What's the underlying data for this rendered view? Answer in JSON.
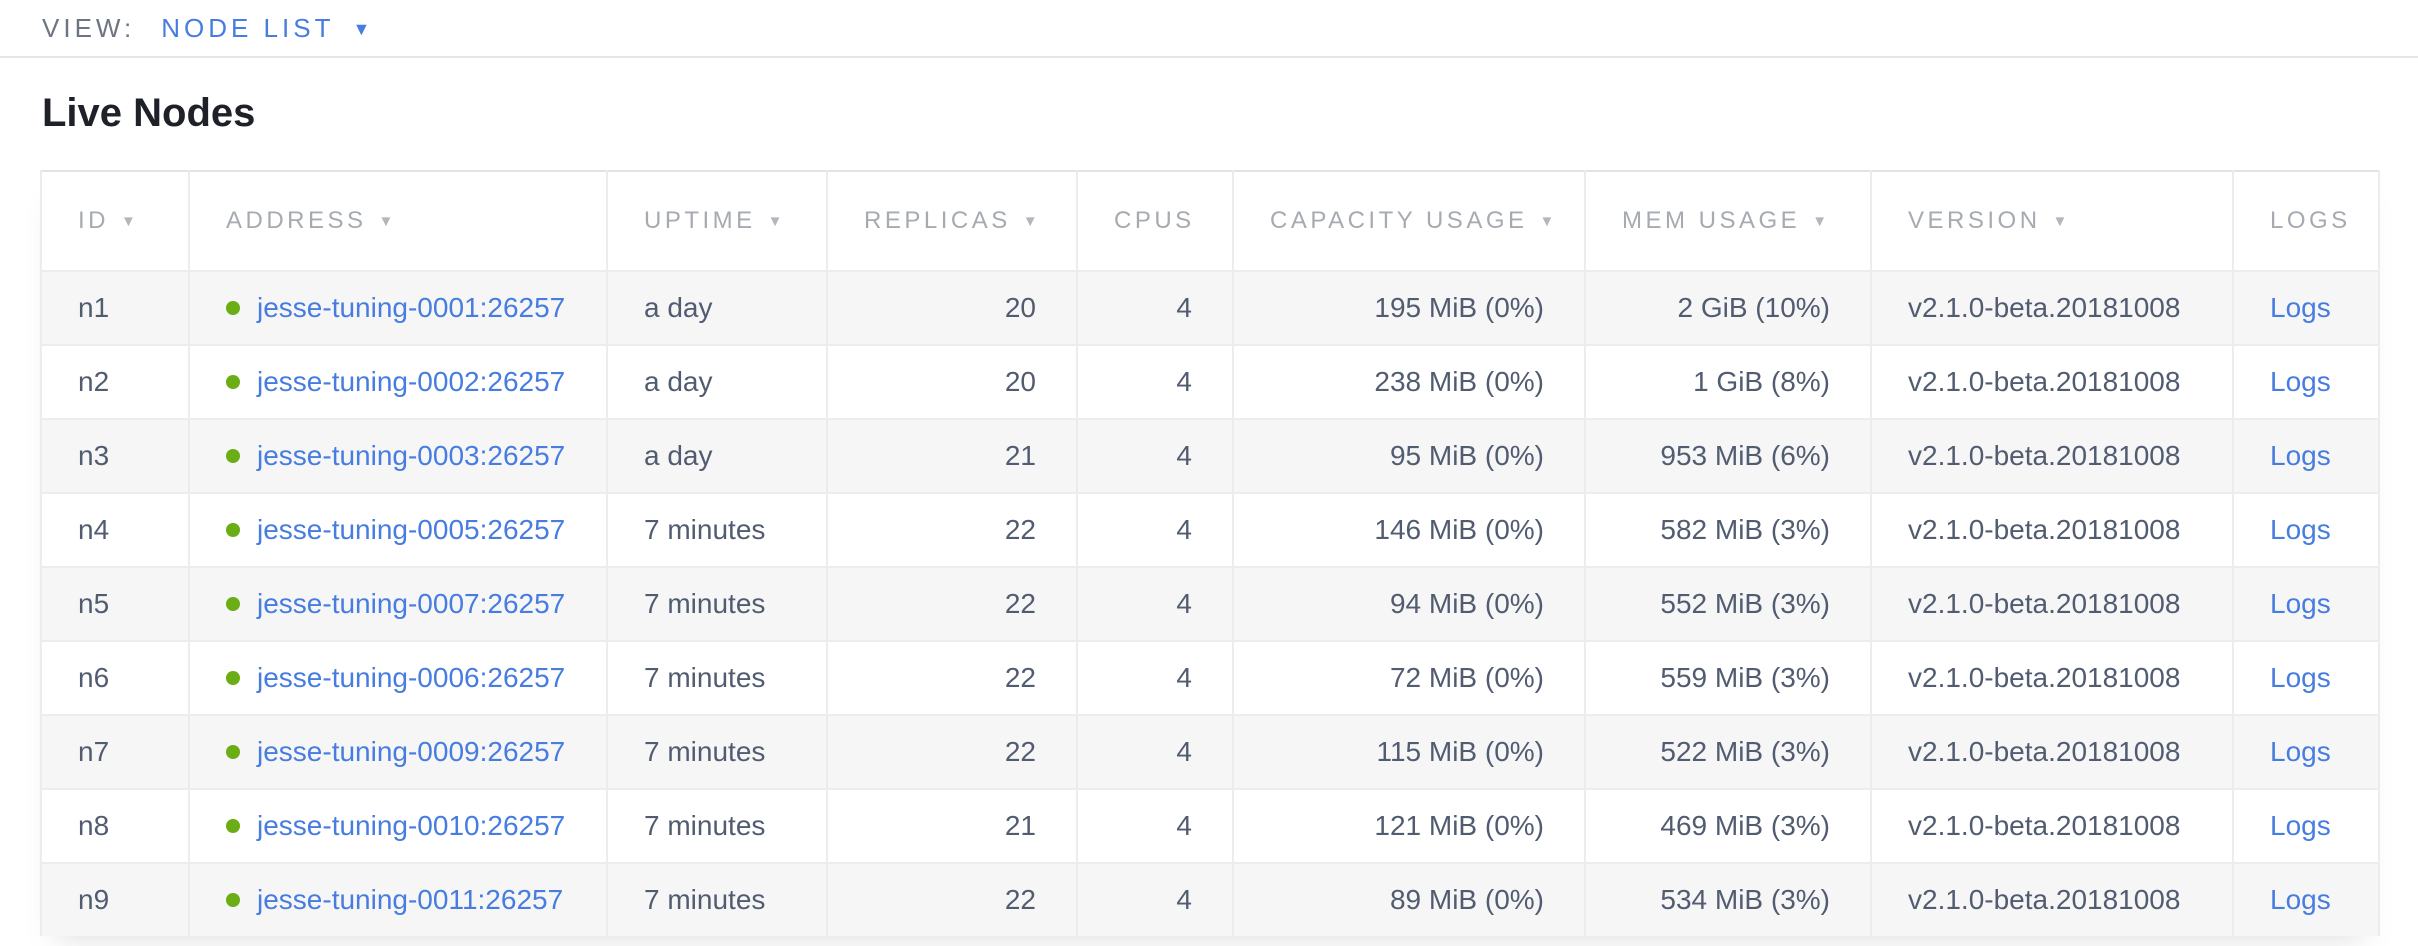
{
  "view_bar": {
    "label": "VIEW:",
    "selected": "NODE LIST"
  },
  "page": {
    "title": "Live Nodes"
  },
  "table": {
    "columns": [
      {
        "key": "id",
        "label": "ID",
        "sortable": true,
        "align": "left"
      },
      {
        "key": "address",
        "label": "ADDRESS",
        "sortable": true,
        "align": "left"
      },
      {
        "key": "uptime",
        "label": "UPTIME",
        "sortable": true,
        "align": "left"
      },
      {
        "key": "replicas",
        "label": "REPLICAS",
        "sortable": true,
        "align": "right"
      },
      {
        "key": "cpus",
        "label": "CPUS",
        "sortable": false,
        "align": "right"
      },
      {
        "key": "capacity",
        "label": "CAPACITY USAGE",
        "sortable": true,
        "align": "right"
      },
      {
        "key": "mem",
        "label": "MEM USAGE",
        "sortable": true,
        "align": "right"
      },
      {
        "key": "version",
        "label": "VERSION",
        "sortable": true,
        "align": "left"
      },
      {
        "key": "logs",
        "label": "LOGS",
        "sortable": false,
        "align": "left"
      }
    ],
    "rows": [
      {
        "id": "n1",
        "address": "jesse-tuning-0001:26257",
        "uptime": "a day",
        "replicas": "20",
        "cpus": "4",
        "capacity": "195 MiB (0%)",
        "mem": "2 GiB (10%)",
        "version": "v2.1.0-beta.20181008",
        "logs": "Logs"
      },
      {
        "id": "n2",
        "address": "jesse-tuning-0002:26257",
        "uptime": "a day",
        "replicas": "20",
        "cpus": "4",
        "capacity": "238 MiB (0%)",
        "mem": "1 GiB (8%)",
        "version": "v2.1.0-beta.20181008",
        "logs": "Logs"
      },
      {
        "id": "n3",
        "address": "jesse-tuning-0003:26257",
        "uptime": "a day",
        "replicas": "21",
        "cpus": "4",
        "capacity": "95 MiB (0%)",
        "mem": "953 MiB (6%)",
        "version": "v2.1.0-beta.20181008",
        "logs": "Logs"
      },
      {
        "id": "n4",
        "address": "jesse-tuning-0005:26257",
        "uptime": "7 minutes",
        "replicas": "22",
        "cpus": "4",
        "capacity": "146 MiB (0%)",
        "mem": "582 MiB (3%)",
        "version": "v2.1.0-beta.20181008",
        "logs": "Logs"
      },
      {
        "id": "n5",
        "address": "jesse-tuning-0007:26257",
        "uptime": "7 minutes",
        "replicas": "22",
        "cpus": "4",
        "capacity": "94 MiB (0%)",
        "mem": "552 MiB (3%)",
        "version": "v2.1.0-beta.20181008",
        "logs": "Logs"
      },
      {
        "id": "n6",
        "address": "jesse-tuning-0006:26257",
        "uptime": "7 minutes",
        "replicas": "22",
        "cpus": "4",
        "capacity": "72 MiB (0%)",
        "mem": "559 MiB (3%)",
        "version": "v2.1.0-beta.20181008",
        "logs": "Logs"
      },
      {
        "id": "n7",
        "address": "jesse-tuning-0009:26257",
        "uptime": "7 minutes",
        "replicas": "22",
        "cpus": "4",
        "capacity": "115 MiB (0%)",
        "mem": "522 MiB (3%)",
        "version": "v2.1.0-beta.20181008",
        "logs": "Logs"
      },
      {
        "id": "n8",
        "address": "jesse-tuning-0010:26257",
        "uptime": "7 minutes",
        "replicas": "21",
        "cpus": "4",
        "capacity": "121 MiB (0%)",
        "mem": "469 MiB (3%)",
        "version": "v2.1.0-beta.20181008",
        "logs": "Logs"
      },
      {
        "id": "n9",
        "address": "jesse-tuning-0011:26257",
        "uptime": "7 minutes",
        "replicas": "22",
        "cpus": "4",
        "capacity": "89 MiB (0%)",
        "mem": "534 MiB (3%)",
        "version": "v2.1.0-beta.20181008",
        "logs": "Logs"
      }
    ]
  },
  "icons": {
    "view_dropdown_caret": "▼",
    "sort_caret": "▼",
    "live_status_dot": "live-green-dot"
  },
  "colors": {
    "link_blue": "#477ce0",
    "live_dot_green": "#6bad15",
    "header_gray": "#a6aab1",
    "body_slate": "#525c71",
    "row_stripe": "#f6f6f7"
  }
}
